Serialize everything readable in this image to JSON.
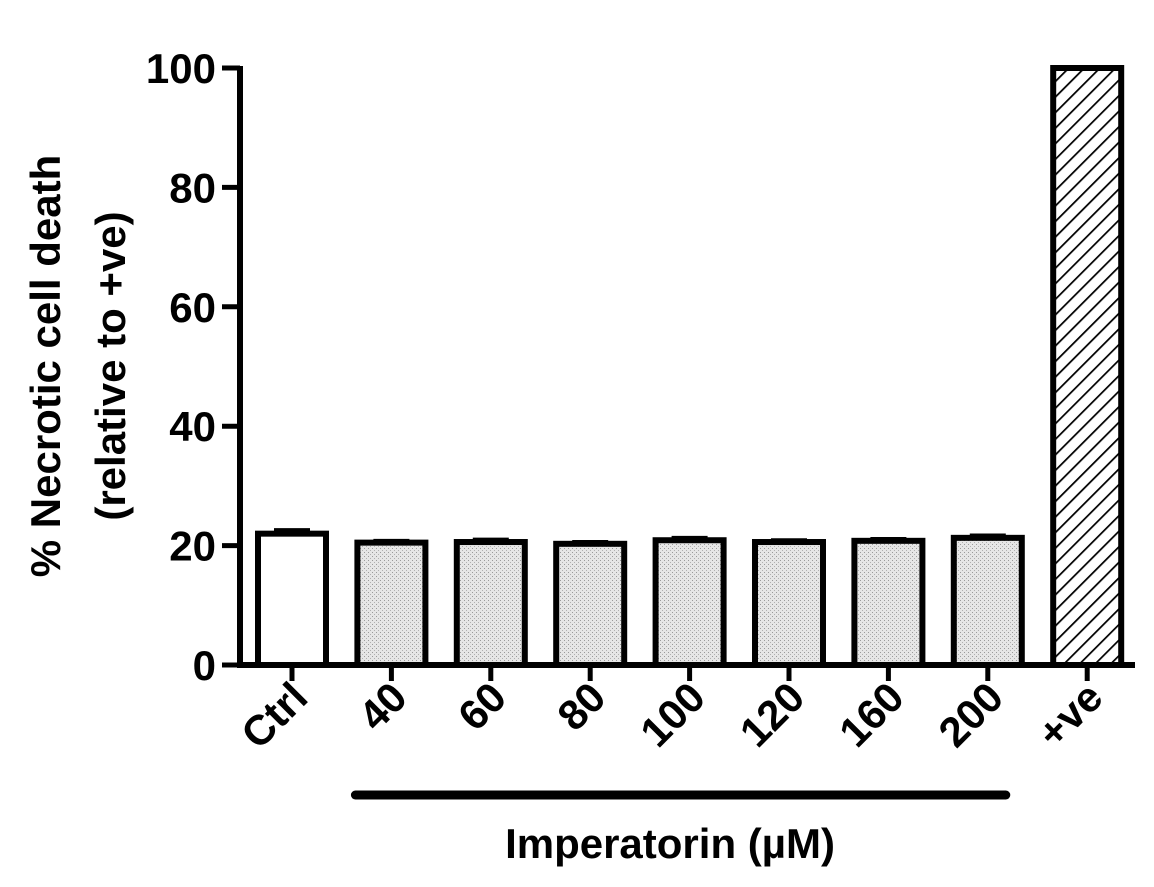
{
  "chart_data": {
    "type": "bar",
    "categories": [
      "Ctrl",
      "40",
      "60",
      "80",
      "100",
      "120",
      "160",
      "200",
      "+ve"
    ],
    "values": [
      22,
      20.5,
      20.6,
      20.3,
      20.9,
      20.6,
      20.8,
      21.3,
      100
    ],
    "errors": [
      0.6,
      0.3,
      0.4,
      0.3,
      0.4,
      0.3,
      0.3,
      0.4,
      0
    ],
    "fills": [
      "white",
      "stipple",
      "stipple",
      "stipple",
      "stipple",
      "stipple",
      "stipple",
      "stipple",
      "hatch"
    ],
    "ylabel_line1": "% Necrotic cell death",
    "ylabel_line2": "(relative to +ve)",
    "xlabel": "Imperatorin (µM)",
    "ylim": [
      0,
      100
    ],
    "yticks": [
      "0",
      "20",
      "40",
      "60",
      "80",
      "100"
    ],
    "grouped_categories": [
      "40",
      "60",
      "80",
      "100",
      "120",
      "160",
      "200"
    ],
    "colors": {
      "stipple": "#dcdcdc",
      "ink": "#000000",
      "white": "#ffffff"
    }
  }
}
